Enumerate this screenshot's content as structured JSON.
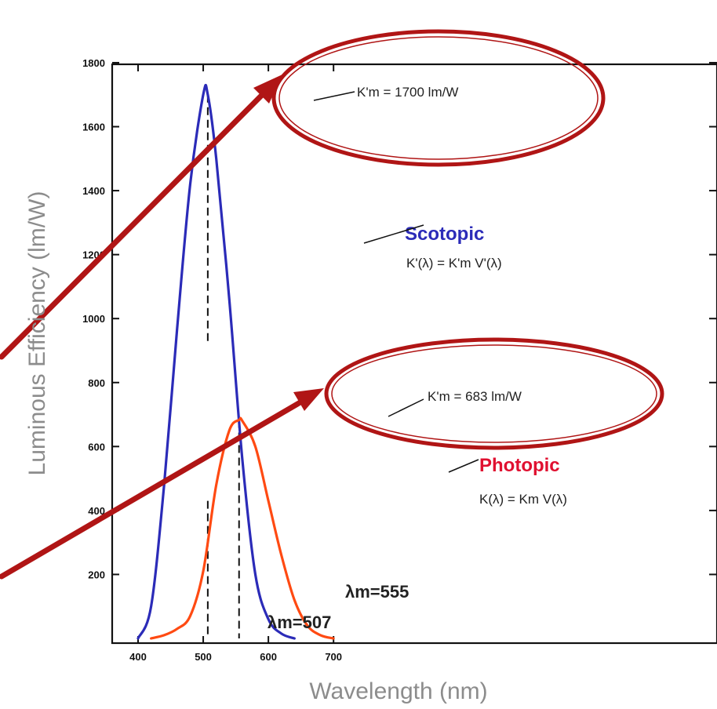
{
  "chart_data": {
    "type": "line",
    "xlabel": "Wavelength (nm)",
    "ylabel": "Luminous Efficiency (lm/W)",
    "xlim": [
      380,
      760
    ],
    "ylim": [
      0,
      1800
    ],
    "x_ticks": [
      400,
      500,
      600,
      700
    ],
    "y_ticks": [
      200,
      400,
      600,
      800,
      1000,
      1200,
      1400,
      1600,
      1800
    ],
    "grid": false,
    "series": [
      {
        "name": "Scotopic",
        "formula": "K'(λ) = K'm V'(λ)",
        "color": "#2b2bb8",
        "x": [
          400,
          420,
          440,
          460,
          480,
          500,
          507,
          520,
          540,
          560,
          580,
          600,
          620,
          640
        ],
        "y": [
          0,
          100,
          480,
          970,
          1420,
          1700,
          1700,
          1500,
          1060,
          560,
          200,
          60,
          15,
          0
        ]
      },
      {
        "name": "Photopic",
        "formula": "K(λ) = Km V(λ)",
        "color": "#ff4a12",
        "x": [
          420,
          440,
          460,
          480,
          500,
          520,
          540,
          555,
          560,
          580,
          600,
          620,
          640,
          660,
          680,
          700
        ],
        "y": [
          0,
          10,
          30,
          70,
          210,
          480,
          650,
          683,
          680,
          600,
          430,
          260,
          120,
          40,
          10,
          0
        ]
      }
    ],
    "annotations": {
      "scotopic_peak": "K'm = 1700 lm/W",
      "photopic_peak": "K'm = 683 lm/W",
      "scotopic_lambda": "λm=507",
      "photopic_lambda": "λm=555"
    },
    "highlight_color": "#b01515"
  }
}
